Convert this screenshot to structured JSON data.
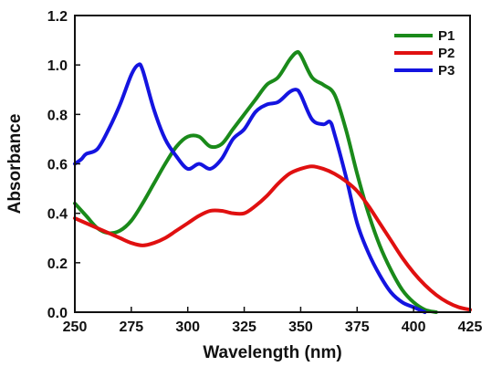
{
  "chart_data": {
    "type": "line",
    "xlabel": "Wavelength (nm)",
    "ylabel": "Absorbance",
    "xlim": [
      250,
      425
    ],
    "ylim": [
      0.0,
      1.2
    ],
    "xticks": [
      "250",
      "275",
      "300",
      "325",
      "350",
      "375",
      "400",
      "425"
    ],
    "yticks": [
      "0.0",
      "0.2",
      "0.4",
      "0.6",
      "0.8",
      "1.0",
      "1.2"
    ],
    "legend_position": "top-right",
    "grid": false,
    "series": [
      {
        "name": "P1",
        "color": "#1a8a1a",
        "points": [
          [
            250,
            0.44
          ],
          [
            255,
            0.39
          ],
          [
            260,
            0.34
          ],
          [
            265,
            0.32
          ],
          [
            270,
            0.33
          ],
          [
            275,
            0.37
          ],
          [
            280,
            0.44
          ],
          [
            285,
            0.52
          ],
          [
            290,
            0.6
          ],
          [
            295,
            0.67
          ],
          [
            300,
            0.71
          ],
          [
            305,
            0.71
          ],
          [
            310,
            0.67
          ],
          [
            315,
            0.68
          ],
          [
            320,
            0.74
          ],
          [
            325,
            0.8
          ],
          [
            330,
            0.86
          ],
          [
            335,
            0.92
          ],
          [
            340,
            0.95
          ],
          [
            345,
            1.02
          ],
          [
            348,
            1.05
          ],
          [
            350,
            1.04
          ],
          [
            355,
            0.95
          ],
          [
            360,
            0.92
          ],
          [
            365,
            0.88
          ],
          [
            370,
            0.74
          ],
          [
            375,
            0.56
          ],
          [
            380,
            0.4
          ],
          [
            385,
            0.27
          ],
          [
            390,
            0.17
          ],
          [
            395,
            0.09
          ],
          [
            400,
            0.04
          ],
          [
            405,
            0.01
          ],
          [
            410,
            0.0
          ]
        ]
      },
      {
        "name": "P2",
        "color": "#e01010",
        "points": [
          [
            250,
            0.38
          ],
          [
            255,
            0.36
          ],
          [
            260,
            0.34
          ],
          [
            265,
            0.32
          ],
          [
            270,
            0.3
          ],
          [
            275,
            0.28
          ],
          [
            280,
            0.27
          ],
          [
            285,
            0.28
          ],
          [
            290,
            0.3
          ],
          [
            295,
            0.33
          ],
          [
            300,
            0.36
          ],
          [
            305,
            0.39
          ],
          [
            310,
            0.41
          ],
          [
            315,
            0.41
          ],
          [
            320,
            0.4
          ],
          [
            325,
            0.4
          ],
          [
            330,
            0.43
          ],
          [
            335,
            0.47
          ],
          [
            340,
            0.52
          ],
          [
            345,
            0.56
          ],
          [
            350,
            0.58
          ],
          [
            355,
            0.59
          ],
          [
            360,
            0.58
          ],
          [
            365,
            0.56
          ],
          [
            370,
            0.53
          ],
          [
            375,
            0.49
          ],
          [
            380,
            0.43
          ],
          [
            385,
            0.36
          ],
          [
            390,
            0.29
          ],
          [
            395,
            0.22
          ],
          [
            400,
            0.16
          ],
          [
            405,
            0.11
          ],
          [
            410,
            0.07
          ],
          [
            415,
            0.04
          ],
          [
            420,
            0.02
          ],
          [
            425,
            0.01
          ]
        ]
      },
      {
        "name": "P3",
        "color": "#1414e0",
        "points": [
          [
            250,
            0.6
          ],
          [
            253,
            0.62
          ],
          [
            255,
            0.64
          ],
          [
            260,
            0.66
          ],
          [
            265,
            0.74
          ],
          [
            270,
            0.84
          ],
          [
            275,
            0.96
          ],
          [
            278,
            1.0
          ],
          [
            280,
            0.98
          ],
          [
            285,
            0.82
          ],
          [
            290,
            0.7
          ],
          [
            295,
            0.63
          ],
          [
            300,
            0.58
          ],
          [
            305,
            0.6
          ],
          [
            310,
            0.58
          ],
          [
            315,
            0.62
          ],
          [
            320,
            0.7
          ],
          [
            325,
            0.74
          ],
          [
            330,
            0.81
          ],
          [
            335,
            0.84
          ],
          [
            340,
            0.85
          ],
          [
            345,
            0.89
          ],
          [
            348,
            0.9
          ],
          [
            350,
            0.88
          ],
          [
            355,
            0.78
          ],
          [
            360,
            0.76
          ],
          [
            363,
            0.77
          ],
          [
            365,
            0.72
          ],
          [
            370,
            0.55
          ],
          [
            375,
            0.36
          ],
          [
            380,
            0.24
          ],
          [
            385,
            0.15
          ],
          [
            390,
            0.08
          ],
          [
            395,
            0.04
          ],
          [
            400,
            0.02
          ],
          [
            405,
            0.0
          ]
        ]
      }
    ]
  }
}
